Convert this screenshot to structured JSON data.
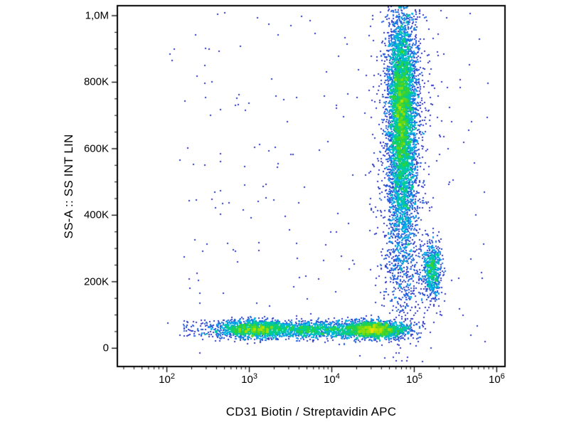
{
  "chart_data": {
    "type": "scatter",
    "subtype": "flow-cytometry-density-dot-plot",
    "title": "",
    "xlabel": "CD31 Biotin / Streptavidin APC",
    "ylabel": "SS-A :: SS INT LIN",
    "x_scale": "log",
    "x_log_domain": [
      1.4,
      6.1
    ],
    "x_ticks": [
      {
        "log": 2,
        "base": "10",
        "exp": "2"
      },
      {
        "log": 3,
        "base": "10",
        "exp": "3"
      },
      {
        "log": 4,
        "base": "10",
        "exp": "4"
      },
      {
        "log": 5,
        "base": "10",
        "exp": "5"
      },
      {
        "log": 6,
        "base": "10",
        "exp": "6"
      }
    ],
    "y_scale": "linear",
    "y_domain": [
      -55000,
      1030000
    ],
    "y_ticks": [
      {
        "value": 0,
        "label": "0"
      },
      {
        "value": 200000,
        "label": "200K"
      },
      {
        "value": 400000,
        "label": "400K"
      },
      {
        "value": 600000,
        "label": "600K"
      },
      {
        "value": 800000,
        "label": "800K"
      },
      {
        "value": 1000000,
        "label": "1,0M"
      }
    ],
    "y_minor_step": 50000,
    "grid": false,
    "legend": "none",
    "marker_px": 2,
    "seed": 1337,
    "density_colormap": [
      [
        0.0,
        "#2a35c8"
      ],
      [
        0.2,
        "#1e6ae6"
      ],
      [
        0.35,
        "#00b4e6"
      ],
      [
        0.5,
        "#00cf8a"
      ],
      [
        0.62,
        "#36d22e"
      ],
      [
        0.74,
        "#a8e000"
      ],
      [
        0.84,
        "#ffe000"
      ],
      [
        0.92,
        "#ff8c00"
      ],
      [
        1.0,
        "#ff1e00"
      ]
    ],
    "populations": [
      {
        "name": "main-column-core",
        "x_log_mean": 4.85,
        "x_log_sd": 0.09,
        "y_mean": 700000,
        "y_sd": 160000,
        "count": 4200
      },
      {
        "name": "main-column-hot-core",
        "x_log_mean": 4.85,
        "x_log_sd": 0.05,
        "y_mean": 720000,
        "y_sd": 120000,
        "count": 1000
      },
      {
        "name": "main-column-halo",
        "x_log_mean": 4.86,
        "x_log_sd": 0.16,
        "y_mean": 680000,
        "y_sd": 280000,
        "count": 1100
      },
      {
        "name": "main-column-lower-tail",
        "x_log_mean": 4.85,
        "x_log_sd": 0.1,
        "y_mean": 380000,
        "y_sd": 110000,
        "count": 500
      },
      {
        "name": "bridge-scatter",
        "x_log_mean": 4.88,
        "x_log_sd": 0.13,
        "y_mean": 200000,
        "y_sd": 90000,
        "count": 260
      },
      {
        "name": "mid-right-blob",
        "x_log_mean": 5.22,
        "x_log_sd": 0.055,
        "y_mean": 235000,
        "y_sd": 40000,
        "count": 650
      },
      {
        "name": "low-ssc-band-left",
        "x_log_mean": 3.05,
        "x_log_sd": 0.22,
        "y_mean": 57000,
        "y_sd": 13000,
        "count": 1500
      },
      {
        "name": "low-ssc-band-mid",
        "x_log_mean": 3.75,
        "x_log_sd": 0.3,
        "y_mean": 56000,
        "y_sd": 13000,
        "count": 1100
      },
      {
        "name": "low-ssc-band-right",
        "x_log_mean": 4.5,
        "x_log_sd": 0.2,
        "y_mean": 56000,
        "y_sd": 13000,
        "count": 2000
      },
      {
        "name": "band-left-sparse-tail",
        "uniform": true,
        "x_log_range": [
          2.2,
          2.85
        ],
        "y_range": [
          35000,
          85000
        ],
        "count": 110
      },
      {
        "name": "top-edge-saturated-hot",
        "x_log_mean": 4.86,
        "x_log_sd": 0.05,
        "y_mean": 1150000,
        "y_sd": 60000,
        "count": 160
      },
      {
        "name": "top-edge-saturated-right",
        "x_log_mean": 5.72,
        "x_log_sd": 0.09,
        "y_mean": 1150000,
        "y_sd": 50000,
        "count": 130
      },
      {
        "name": "top-edge-sparse-mid",
        "uniform": true,
        "x_log_range": [
          3.9,
          4.6
        ],
        "y_range": [
          1060000,
          1200000
        ],
        "count": 28
      },
      {
        "name": "background-debris",
        "uniform": true,
        "x_log_range": [
          2.0,
          5.9
        ],
        "y_range": [
          -30000,
          1020000
        ],
        "count": 240
      }
    ]
  }
}
